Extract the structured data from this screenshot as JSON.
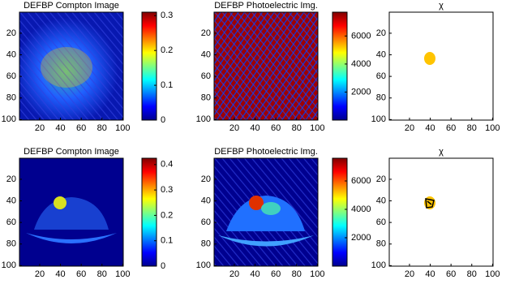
{
  "chart_data": [
    {
      "type": "image",
      "title": "DEFBP Compton Image",
      "xlim": [
        0.5,
        100.5
      ],
      "ylim": [
        100.5,
        0.5
      ],
      "xticks": [
        20,
        40,
        60,
        80,
        100
      ],
      "yticks": [
        20,
        40,
        60,
        80,
        100
      ],
      "clim": [
        0,
        0.31
      ],
      "cticks": [
        0,
        0.1,
        0.2,
        0.3
      ]
    },
    {
      "type": "image",
      "title": "DEFBP Photoelectric Img.",
      "xlim": [
        0.5,
        100.5
      ],
      "ylim": [
        100.5,
        0.5
      ],
      "xticks": [
        20,
        40,
        60,
        80,
        100
      ],
      "yticks": [
        20,
        40,
        60,
        80,
        100
      ],
      "clim": [
        0,
        7700
      ],
      "cticks": [
        2000,
        4000,
        6000
      ]
    },
    {
      "type": "image",
      "title": "χ",
      "xlim": [
        0.5,
        100.5
      ],
      "ylim": [
        100.5,
        0.5
      ],
      "xticks": [
        20,
        40,
        60,
        80,
        100
      ],
      "yticks": [
        20,
        40,
        60,
        80,
        100
      ]
    },
    {
      "type": "image",
      "title": "DEFBP Compton Image",
      "xlim": [
        0.5,
        100.5
      ],
      "ylim": [
        100.5,
        0.5
      ],
      "xticks": [
        20,
        40,
        60,
        80,
        100
      ],
      "yticks": [
        20,
        40,
        60,
        80,
        100
      ],
      "clim": [
        0,
        0.425
      ],
      "cticks": [
        0,
        0.1,
        0.2,
        0.3,
        0.4
      ]
    },
    {
      "type": "image",
      "title": "DEFBP Photoelectric Img.",
      "xlim": [
        0.5,
        100.5
      ],
      "ylim": [
        100.5,
        0.5
      ],
      "xticks": [
        20,
        40,
        60,
        80,
        100
      ],
      "yticks": [
        20,
        40,
        60,
        80,
        100
      ],
      "clim": [
        0,
        7600
      ],
      "cticks": [
        2000,
        4000,
        6000
      ]
    },
    {
      "type": "image",
      "title": "χ",
      "xlim": [
        0.5,
        100.5
      ],
      "ylim": [
        100.5,
        0.5
      ],
      "xticks": [
        20,
        40,
        60,
        80,
        100
      ],
      "yticks": [
        20,
        40,
        60,
        80,
        100
      ]
    }
  ]
}
